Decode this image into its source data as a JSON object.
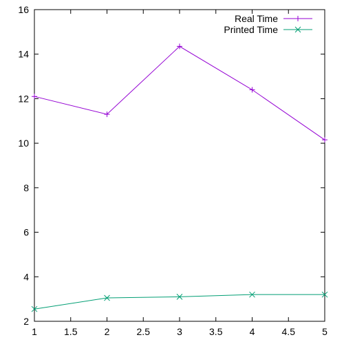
{
  "chart_data": {
    "type": "line",
    "title": "",
    "xlabel": "",
    "ylabel": "",
    "x": [
      1,
      2,
      3,
      4,
      5
    ],
    "xlim": [
      1,
      5
    ],
    "ylim": [
      2,
      16
    ],
    "x_ticks": [
      "1",
      "1.5",
      "2",
      "2.5",
      "3",
      "3.5",
      "4",
      "4.5",
      "5"
    ],
    "y_ticks": [
      "2",
      "4",
      "6",
      "8",
      "10",
      "12",
      "14",
      "16"
    ],
    "grid": false,
    "legend_position": "top-right",
    "series": [
      {
        "name": "Real Time",
        "values": [
          12.1,
          11.3,
          14.35,
          12.4,
          10.15
        ],
        "color": "#9400d3",
        "marker": "plus"
      },
      {
        "name": "Printed Time",
        "values": [
          2.55,
          3.05,
          3.1,
          3.2,
          3.2
        ],
        "color": "#009e73",
        "marker": "cross"
      }
    ]
  }
}
